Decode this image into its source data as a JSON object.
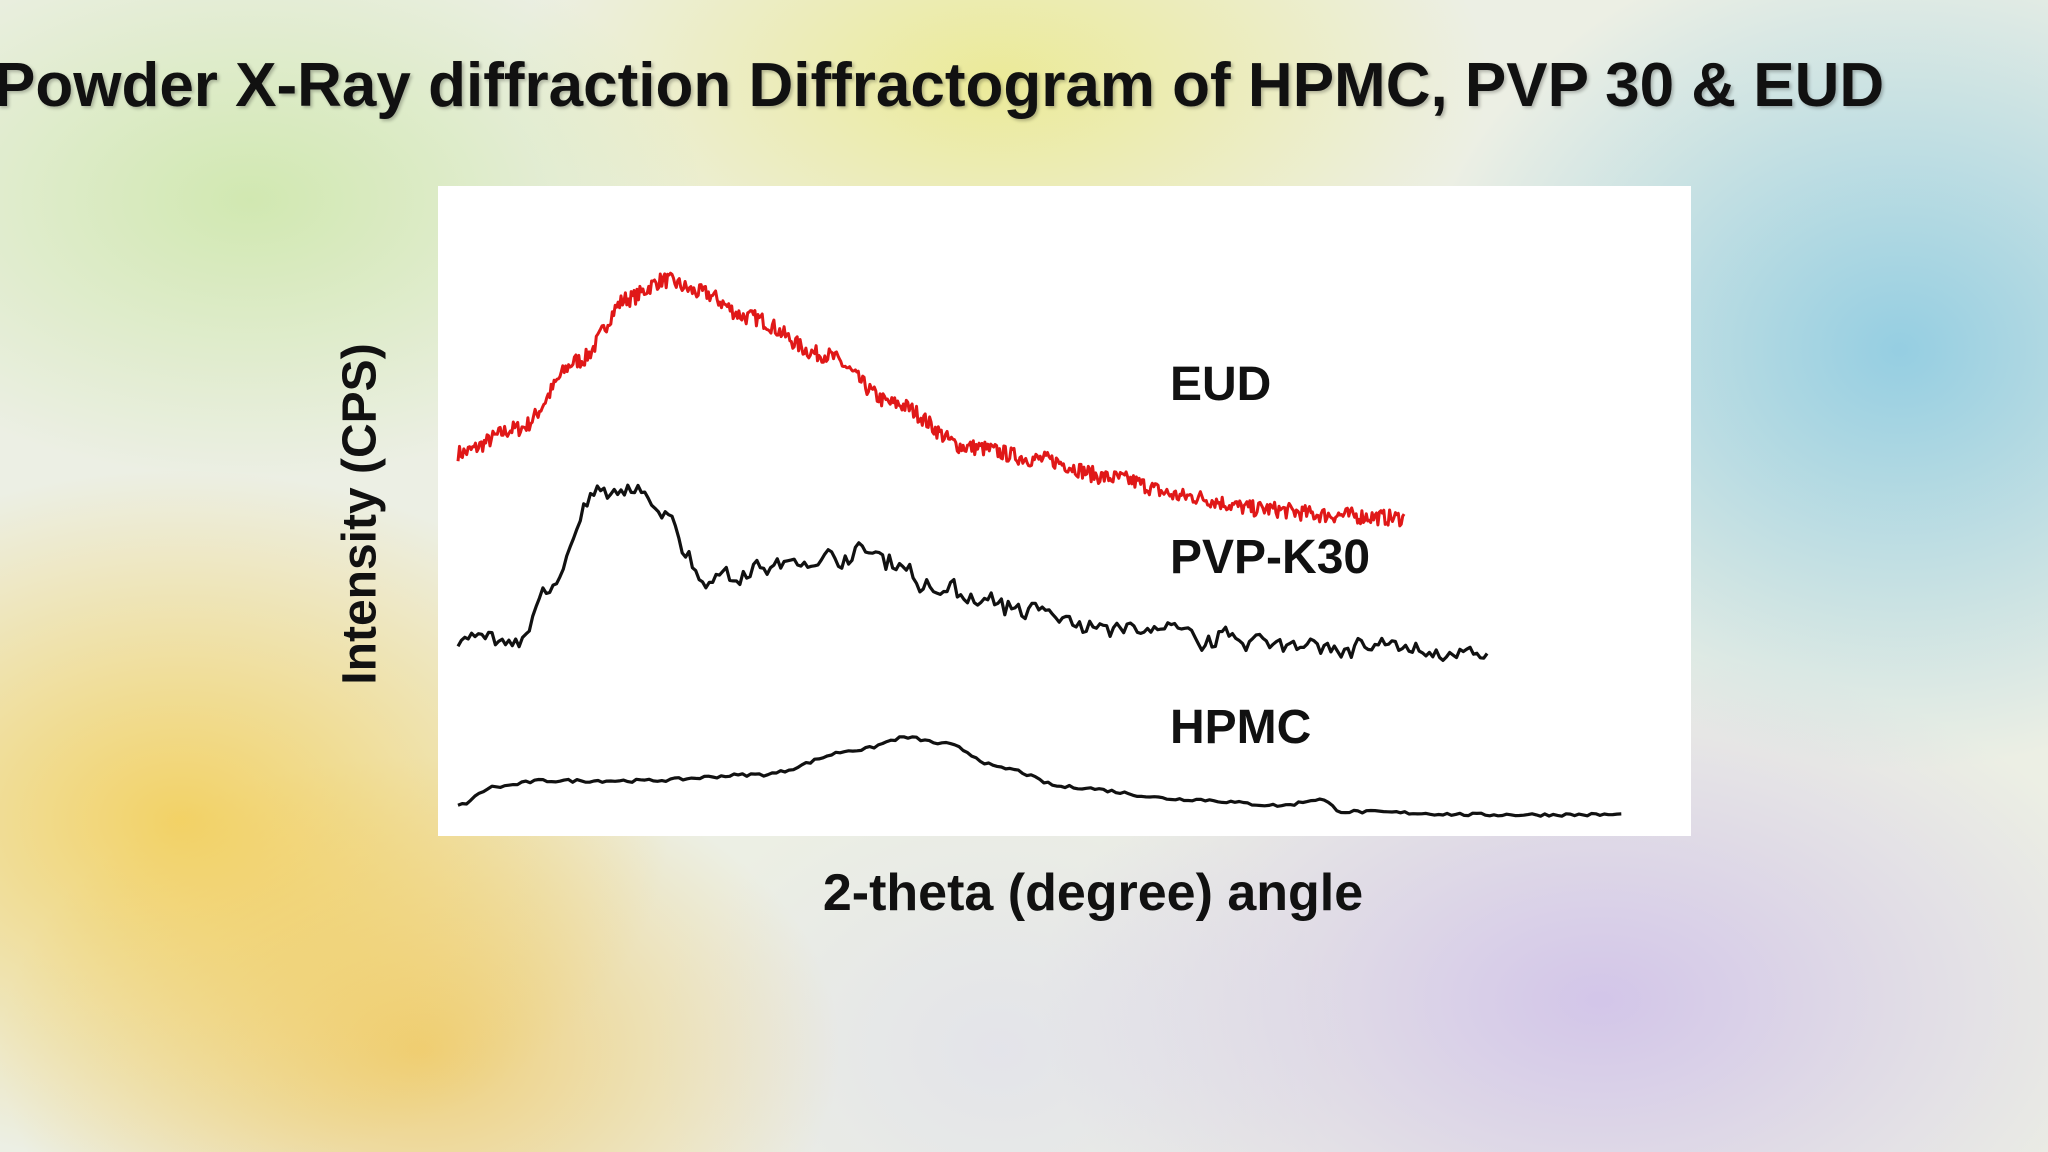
{
  "slide": {
    "title": "Powder X-Ray diffraction Diffractogram of HPMC, PVP 30 & EUD"
  },
  "chart_data": {
    "type": "line",
    "title": "Powder X-Ray diffraction Diffractogram of HPMC, PVP 30 & EUD",
    "xlabel": "2-theta (degree) angle",
    "ylabel": "Intensity (CPS)",
    "xlim": [
      0,
      100
    ],
    "ylim": [
      0,
      100
    ],
    "axes_visible": false,
    "grid": false,
    "legend": "inline labels",
    "series": [
      {
        "name": "EUD",
        "color": "#e01818",
        "noise": "fine",
        "points": [
          [
            0,
            60
          ],
          [
            5,
            64
          ],
          [
            10,
            75
          ],
          [
            14,
            85
          ],
          [
            17,
            88
          ],
          [
            20,
            86
          ],
          [
            24,
            82
          ],
          [
            30,
            76
          ],
          [
            36,
            68
          ],
          [
            42,
            61
          ],
          [
            48,
            59
          ],
          [
            54,
            56
          ],
          [
            60,
            53
          ],
          [
            66,
            51
          ],
          [
            72,
            50
          ],
          [
            78,
            49.5
          ]
        ]
      },
      {
        "name": "PVP-K30",
        "color": "#111111",
        "noise": "coarse",
        "points": [
          [
            0,
            30
          ],
          [
            5,
            30
          ],
          [
            8,
            40
          ],
          [
            11,
            52
          ],
          [
            14,
            54
          ],
          [
            17,
            51
          ],
          [
            20,
            40
          ],
          [
            24,
            41
          ],
          [
            28,
            42
          ],
          [
            33,
            44
          ],
          [
            36,
            43
          ],
          [
            38,
            39
          ],
          [
            42,
            37
          ],
          [
            48,
            34
          ],
          [
            52,
            32
          ],
          [
            58,
            31
          ],
          [
            64,
            30
          ],
          [
            72,
            28.5
          ],
          [
            80,
            28
          ],
          [
            85,
            27
          ]
        ]
      },
      {
        "name": "HPMC",
        "color": "#111111",
        "noise": "smooth",
        "points": [
          [
            0,
            3
          ],
          [
            3,
            6
          ],
          [
            7,
            7
          ],
          [
            15,
            7
          ],
          [
            25,
            8
          ],
          [
            33,
            12
          ],
          [
            37,
            14
          ],
          [
            40,
            13
          ],
          [
            45,
            9
          ],
          [
            50,
            6
          ],
          [
            60,
            4
          ],
          [
            68,
            3
          ],
          [
            71,
            4
          ],
          [
            73,
            2
          ],
          [
            85,
            1.5
          ],
          [
            96,
            1.5
          ]
        ]
      }
    ]
  }
}
